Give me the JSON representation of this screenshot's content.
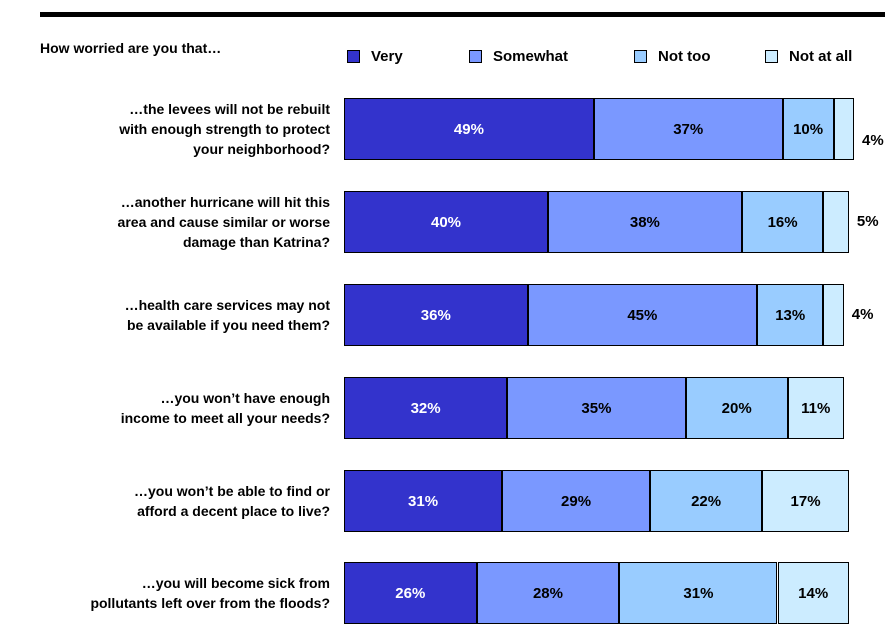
{
  "chart_data": {
    "type": "bar",
    "orientation": "horizontal",
    "stacked": true,
    "header": "How worried are you that…",
    "legend_placement": "top",
    "categories": [
      [
        "…the levees will not be rebuilt",
        "with enough strength to protect",
        "your neighborhood?"
      ],
      [
        "…another hurricane will hit this",
        "area and cause similar or worse",
        "damage than Katrina?"
      ],
      [
        "…health care services may not",
        "be available if you need them?"
      ],
      [
        "…you won’t have enough",
        "income to meet all your needs?"
      ],
      [
        "…you won’t be able to find or",
        "afford a decent place to live?"
      ],
      [
        "…you will become sick from",
        "pollutants left over from the floods?"
      ]
    ],
    "series": [
      {
        "name": "Very",
        "color": "#3333cc",
        "values": [
          49,
          40,
          36,
          32,
          31,
          26
        ],
        "labels": [
          "49%",
          "40%",
          "36%",
          "32%",
          "31%",
          "26%"
        ]
      },
      {
        "name": "Somewhat",
        "color": "#7a98ff",
        "values": [
          37,
          38,
          45,
          35,
          29,
          28
        ],
        "labels": [
          "37%",
          "38%",
          "45%",
          "35%",
          "29%",
          "28%"
        ]
      },
      {
        "name": "Not too",
        "color": "#99ccff",
        "values": [
          10,
          16,
          13,
          20,
          22,
          31
        ],
        "labels": [
          "10%",
          "16%",
          "13%",
          "20%",
          "22%",
          "31%"
        ]
      },
      {
        "name": "Not at all",
        "color": "#ccecff",
        "values": [
          4,
          5,
          4,
          11,
          17,
          14
        ],
        "labels": [
          "4%",
          "5%",
          "4%",
          "11%",
          "17%",
          "14%"
        ]
      }
    ],
    "xlim": [
      0,
      100
    ]
  }
}
